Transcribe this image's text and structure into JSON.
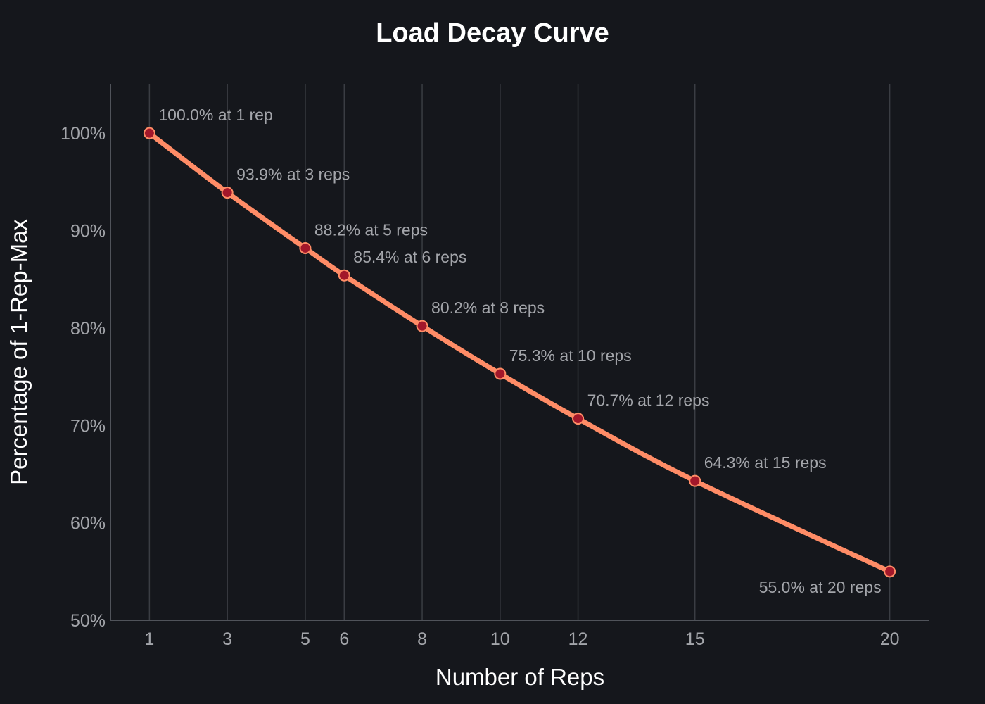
{
  "chart_data": {
    "type": "line",
    "title": "Load Decay Curve",
    "xlabel": "Number of Reps",
    "ylabel": "Percentage of 1-Rep-Max",
    "xlim": [
      0,
      21
    ],
    "ylim": [
      50,
      105
    ],
    "x_ticks": [
      1,
      3,
      5,
      6,
      8,
      10,
      12,
      15,
      20
    ],
    "y_ticks": [
      50,
      60,
      70,
      80,
      90,
      100
    ],
    "y_tick_labels": [
      "50%",
      "60%",
      "70%",
      "80%",
      "90%",
      "100%"
    ],
    "grid": "vertical",
    "series": [
      {
        "name": "Load Decay",
        "x": [
          1,
          3,
          5,
          6,
          8,
          10,
          12,
          15,
          20
        ],
        "y": [
          100.0,
          93.9,
          88.2,
          85.4,
          80.2,
          75.3,
          70.7,
          64.3,
          55.0
        ],
        "color": "#ff8c66",
        "marker_color": "#a3172a",
        "labels": [
          "100.0% at 1 rep",
          "93.9% at 3 reps",
          "88.2% at 5 reps",
          "85.4% at 6 reps",
          "80.2% at 8 reps",
          "75.3% at 10 reps",
          "70.7% at 12 reps",
          "64.3% at 15 reps",
          "55.0% at 20 reps"
        ]
      }
    ]
  }
}
